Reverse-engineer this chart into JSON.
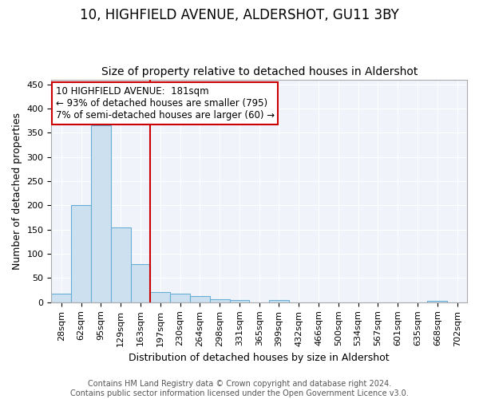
{
  "title": "10, HIGHFIELD AVENUE, ALDERSHOT, GU11 3BY",
  "subtitle": "Size of property relative to detached houses in Aldershot",
  "xlabel": "Distribution of detached houses by size in Aldershot",
  "ylabel": "Number of detached properties",
  "bar_labels": [
    "28sqm",
    "62sqm",
    "95sqm",
    "129sqm",
    "163sqm",
    "197sqm",
    "230sqm",
    "264sqm",
    "298sqm",
    "331sqm",
    "365sqm",
    "399sqm",
    "432sqm",
    "466sqm",
    "500sqm",
    "534sqm",
    "567sqm",
    "601sqm",
    "635sqm",
    "668sqm",
    "702sqm"
  ],
  "bar_values": [
    18,
    201,
    366,
    154,
    79,
    21,
    17,
    13,
    7,
    4,
    0,
    4,
    0,
    0,
    0,
    0,
    0,
    0,
    0,
    3,
    0
  ],
  "bar_color": "#cce0f0",
  "bar_edge_color": "#6aaed6",
  "vline_bar_index": 5,
  "vline_color": "#cc0000",
  "annotation_line1": "10 HIGHFIELD AVENUE:  181sqm",
  "annotation_line2": "← 93% of detached houses are smaller (795)",
  "annotation_line3": "7% of semi-detached houses are larger (60) →",
  "annotation_box_color": "#ffffff",
  "annotation_box_edge_color": "#cc0000",
  "ylim": [
    0,
    460
  ],
  "yticks": [
    0,
    50,
    100,
    150,
    200,
    250,
    300,
    350,
    400,
    450
  ],
  "footer": "Contains HM Land Registry data © Crown copyright and database right 2024.\nContains public sector information licensed under the Open Government Licence v3.0.",
  "title_fontsize": 12,
  "subtitle_fontsize": 10,
  "axis_label_fontsize": 9,
  "tick_fontsize": 8,
  "footer_fontsize": 7,
  "annotation_fontsize": 8.5,
  "background_color": "#f0f4fa"
}
